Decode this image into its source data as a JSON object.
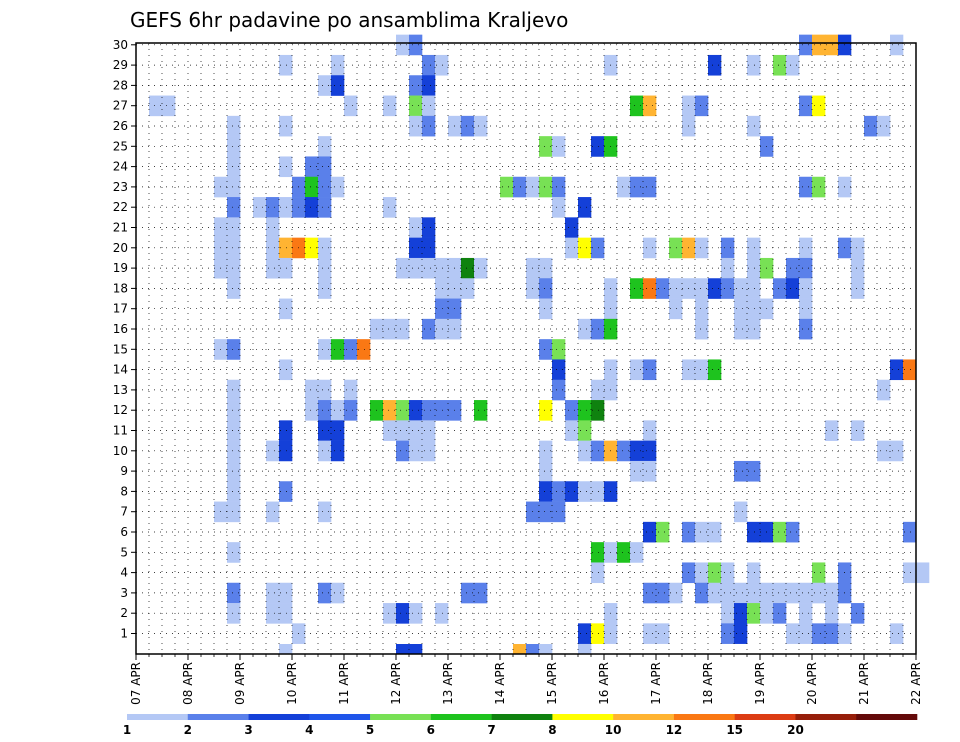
{
  "chart_data": {
    "type": "heatmap",
    "title": "GEFS 6hr padavine po ansamblima Kraljevo",
    "xlabel": "",
    "ylabel": "",
    "x_ticks": [
      "07 APR",
      "08 APR",
      "09 APR",
      "10 APR",
      "11 APR",
      "12 APR",
      "13 APR",
      "14 APR",
      "15 APR",
      "16 APR",
      "17 APR",
      "18 APR",
      "19 APR",
      "20 APR",
      "21 APR",
      "22 APR"
    ],
    "y_ticks": [
      "1",
      "2",
      "3",
      "4",
      "5",
      "6",
      "7",
      "8",
      "9",
      "10",
      "11",
      "12",
      "13",
      "14",
      "15",
      "16",
      "17",
      "18",
      "19",
      "20",
      "21",
      "22",
      "23",
      "24",
      "25",
      "26",
      "27",
      "28",
      "29",
      "30"
    ],
    "xlim": [
      "07 APR 00Z",
      "22 APR 00Z"
    ],
    "x_step": "6hr",
    "ylim": [
      1,
      30
    ],
    "grid": true,
    "colorbar": {
      "levels": [
        "1",
        "2",
        "3",
        "4",
        "5",
        "6",
        "7",
        "8",
        "10",
        "12",
        "15",
        "20"
      ],
      "colors": [
        "#b4c8f5",
        "#5a80ea",
        "#1440d8",
        "#1f55ea",
        "#78e155",
        "#1ec31e",
        "#0f820f",
        "#ffff00",
        "#ffb432",
        "#fa7814",
        "#dc3c14",
        "#961e0a",
        "#640a0a"
      ]
    },
    "cells": [
      [
        20,
        30,
        1
      ],
      [
        21,
        30,
        2
      ],
      [
        51,
        30,
        2
      ],
      [
        52,
        30,
        9
      ],
      [
        53,
        30,
        9
      ],
      [
        54,
        30,
        3
      ],
      [
        58,
        30,
        1
      ],
      [
        11,
        29,
        1
      ],
      [
        15,
        29,
        1
      ],
      [
        22,
        29,
        2
      ],
      [
        23,
        29,
        1
      ],
      [
        36,
        29,
        1
      ],
      [
        44,
        29,
        3
      ],
      [
        47,
        29,
        1
      ],
      [
        49,
        29,
        5
      ],
      [
        50,
        29,
        1
      ],
      [
        14,
        28,
        1
      ],
      [
        15,
        28,
        3
      ],
      [
        21,
        28,
        2
      ],
      [
        22,
        28,
        3
      ],
      [
        1,
        27,
        1
      ],
      [
        2,
        27,
        1
      ],
      [
        16,
        27,
        1
      ],
      [
        19,
        27,
        1
      ],
      [
        21,
        27,
        5
      ],
      [
        22,
        27,
        1
      ],
      [
        38,
        27,
        6
      ],
      [
        39,
        27,
        9
      ],
      [
        42,
        27,
        1
      ],
      [
        43,
        27,
        2
      ],
      [
        51,
        27,
        2
      ],
      [
        52,
        27,
        8
      ],
      [
        7,
        26,
        1
      ],
      [
        11,
        26,
        1
      ],
      [
        21,
        26,
        1
      ],
      [
        22,
        26,
        2
      ],
      [
        24,
        26,
        1
      ],
      [
        25,
        26,
        2
      ],
      [
        26,
        26,
        1
      ],
      [
        42,
        26,
        1
      ],
      [
        47,
        26,
        1
      ],
      [
        56,
        26,
        2
      ],
      [
        57,
        26,
        1
      ],
      [
        7,
        25,
        1
      ],
      [
        14,
        25,
        1
      ],
      [
        31,
        25,
        5
      ],
      [
        32,
        25,
        1
      ],
      [
        35,
        25,
        3
      ],
      [
        36,
        25,
        6
      ],
      [
        48,
        25,
        2
      ],
      [
        7,
        24,
        1
      ],
      [
        11,
        24,
        1
      ],
      [
        13,
        24,
        2
      ],
      [
        14,
        24,
        2
      ],
      [
        6,
        23,
        1
      ],
      [
        7,
        23,
        1
      ],
      [
        12,
        23,
        2
      ],
      [
        13,
        23,
        6
      ],
      [
        14,
        23,
        2
      ],
      [
        15,
        23,
        1
      ],
      [
        28,
        23,
        5
      ],
      [
        29,
        23,
        2
      ],
      [
        30,
        23,
        1
      ],
      [
        31,
        23,
        5
      ],
      [
        32,
        23,
        2
      ],
      [
        37,
        23,
        1
      ],
      [
        38,
        23,
        2
      ],
      [
        39,
        23,
        2
      ],
      [
        51,
        23,
        2
      ],
      [
        52,
        23,
        5
      ],
      [
        54,
        23,
        1
      ],
      [
        7,
        22,
        2
      ],
      [
        9,
        22,
        1
      ],
      [
        10,
        22,
        2
      ],
      [
        11,
        22,
        1
      ],
      [
        12,
        22,
        2
      ],
      [
        13,
        22,
        3
      ],
      [
        14,
        22,
        2
      ],
      [
        19,
        22,
        1
      ],
      [
        32,
        22,
        1
      ],
      [
        34,
        22,
        3
      ],
      [
        6,
        21,
        1
      ],
      [
        7,
        21,
        1
      ],
      [
        10,
        21,
        1
      ],
      [
        21,
        21,
        1
      ],
      [
        22,
        21,
        3
      ],
      [
        33,
        21,
        3
      ],
      [
        6,
        20,
        1
      ],
      [
        7,
        20,
        1
      ],
      [
        10,
        20,
        1
      ],
      [
        11,
        20,
        9
      ],
      [
        12,
        20,
        10
      ],
      [
        13,
        20,
        8
      ],
      [
        14,
        20,
        1
      ],
      [
        21,
        20,
        3
      ],
      [
        22,
        20,
        3
      ],
      [
        33,
        20,
        1
      ],
      [
        34,
        20,
        8
      ],
      [
        35,
        20,
        2
      ],
      [
        39,
        20,
        1
      ],
      [
        41,
        20,
        5
      ],
      [
        42,
        20,
        9
      ],
      [
        43,
        20,
        1
      ],
      [
        45,
        20,
        2
      ],
      [
        47,
        20,
        1
      ],
      [
        51,
        20,
        1
      ],
      [
        54,
        20,
        2
      ],
      [
        55,
        20,
        1
      ],
      [
        6,
        19,
        1
      ],
      [
        7,
        19,
        1
      ],
      [
        10,
        19,
        1
      ],
      [
        11,
        19,
        1
      ],
      [
        14,
        19,
        1
      ],
      [
        20,
        19,
        1
      ],
      [
        21,
        19,
        1
      ],
      [
        22,
        19,
        1
      ],
      [
        23,
        19,
        1
      ],
      [
        24,
        19,
        1
      ],
      [
        25,
        19,
        7
      ],
      [
        26,
        19,
        1
      ],
      [
        30,
        19,
        1
      ],
      [
        31,
        19,
        1
      ],
      [
        45,
        19,
        1
      ],
      [
        47,
        19,
        1
      ],
      [
        48,
        19,
        5
      ],
      [
        50,
        19,
        2
      ],
      [
        51,
        19,
        2
      ],
      [
        55,
        19,
        1
      ],
      [
        7,
        18,
        1
      ],
      [
        14,
        18,
        1
      ],
      [
        23,
        18,
        1
      ],
      [
        24,
        18,
        1
      ],
      [
        25,
        18,
        1
      ],
      [
        30,
        18,
        1
      ],
      [
        31,
        18,
        2
      ],
      [
        36,
        18,
        1
      ],
      [
        38,
        18,
        6
      ],
      [
        39,
        18,
        10
      ],
      [
        40,
        18,
        2
      ],
      [
        41,
        18,
        1
      ],
      [
        42,
        18,
        1
      ],
      [
        43,
        18,
        1
      ],
      [
        44,
        18,
        3
      ],
      [
        45,
        18,
        2
      ],
      [
        46,
        18,
        1
      ],
      [
        47,
        18,
        1
      ],
      [
        49,
        18,
        2
      ],
      [
        50,
        18,
        3
      ],
      [
        51,
        18,
        1
      ],
      [
        55,
        18,
        1
      ],
      [
        11,
        17,
        1
      ],
      [
        23,
        17,
        2
      ],
      [
        24,
        17,
        2
      ],
      [
        31,
        17,
        1
      ],
      [
        36,
        17,
        1
      ],
      [
        41,
        17,
        1
      ],
      [
        43,
        17,
        1
      ],
      [
        46,
        17,
        1
      ],
      [
        47,
        17,
        1
      ],
      [
        48,
        17,
        1
      ],
      [
        51,
        17,
        1
      ],
      [
        18,
        16,
        1
      ],
      [
        19,
        16,
        1
      ],
      [
        20,
        16,
        1
      ],
      [
        22,
        16,
        2
      ],
      [
        23,
        16,
        1
      ],
      [
        24,
        16,
        1
      ],
      [
        34,
        16,
        1
      ],
      [
        35,
        16,
        2
      ],
      [
        36,
        16,
        6
      ],
      [
        43,
        16,
        1
      ],
      [
        46,
        16,
        1
      ],
      [
        47,
        16,
        1
      ],
      [
        51,
        16,
        2
      ],
      [
        6,
        15,
        1
      ],
      [
        7,
        15,
        2
      ],
      [
        14,
        15,
        1
      ],
      [
        15,
        15,
        6
      ],
      [
        16,
        15,
        2
      ],
      [
        17,
        15,
        10
      ],
      [
        31,
        15,
        2
      ],
      [
        32,
        15,
        5
      ],
      [
        11,
        14,
        1
      ],
      [
        32,
        14,
        3
      ],
      [
        36,
        14,
        1
      ],
      [
        38,
        14,
        1
      ],
      [
        39,
        14,
        2
      ],
      [
        42,
        14,
        1
      ],
      [
        43,
        14,
        1
      ],
      [
        44,
        14,
        6
      ],
      [
        58,
        14,
        3
      ],
      [
        59,
        14,
        10
      ],
      [
        7,
        13,
        1
      ],
      [
        13,
        13,
        1
      ],
      [
        14,
        13,
        1
      ],
      [
        16,
        13,
        1
      ],
      [
        32,
        13,
        2
      ],
      [
        35,
        13,
        1
      ],
      [
        36,
        13,
        1
      ],
      [
        57,
        13,
        1
      ],
      [
        7,
        12,
        1
      ],
      [
        13,
        12,
        1
      ],
      [
        14,
        12,
        2
      ],
      [
        15,
        12,
        1
      ],
      [
        16,
        12,
        2
      ],
      [
        18,
        12,
        6
      ],
      [
        19,
        12,
        9
      ],
      [
        20,
        12,
        5
      ],
      [
        21,
        12,
        3
      ],
      [
        22,
        12,
        2
      ],
      [
        23,
        12,
        2
      ],
      [
        24,
        12,
        2
      ],
      [
        26,
        12,
        6
      ],
      [
        31,
        12,
        8
      ],
      [
        33,
        12,
        2
      ],
      [
        34,
        12,
        6
      ],
      [
        35,
        12,
        7
      ],
      [
        7,
        11,
        1
      ],
      [
        11,
        11,
        3
      ],
      [
        14,
        11,
        3
      ],
      [
        15,
        11,
        3
      ],
      [
        19,
        11,
        1
      ],
      [
        20,
        11,
        1
      ],
      [
        21,
        11,
        1
      ],
      [
        22,
        11,
        1
      ],
      [
        33,
        11,
        1
      ],
      [
        34,
        11,
        5
      ],
      [
        39,
        11,
        1
      ],
      [
        53,
        11,
        1
      ],
      [
        55,
        11,
        1
      ],
      [
        7,
        10,
        1
      ],
      [
        10,
        10,
        1
      ],
      [
        11,
        10,
        3
      ],
      [
        14,
        10,
        1
      ],
      [
        15,
        10,
        3
      ],
      [
        20,
        10,
        2
      ],
      [
        21,
        10,
        1
      ],
      [
        22,
        10,
        1
      ],
      [
        31,
        10,
        1
      ],
      [
        34,
        10,
        1
      ],
      [
        35,
        10,
        2
      ],
      [
        36,
        10,
        9
      ],
      [
        37,
        10,
        2
      ],
      [
        38,
        10,
        3
      ],
      [
        39,
        10,
        3
      ],
      [
        57,
        10,
        1
      ],
      [
        58,
        10,
        1
      ],
      [
        7,
        9,
        1
      ],
      [
        31,
        9,
        1
      ],
      [
        38,
        9,
        1
      ],
      [
        39,
        9,
        1
      ],
      [
        46,
        9,
        2
      ],
      [
        47,
        9,
        2
      ],
      [
        7,
        8,
        1
      ],
      [
        11,
        8,
        2
      ],
      [
        31,
        8,
        3
      ],
      [
        32,
        8,
        2
      ],
      [
        33,
        8,
        3
      ],
      [
        34,
        8,
        1
      ],
      [
        35,
        8,
        1
      ],
      [
        36,
        8,
        3
      ],
      [
        6,
        7,
        1
      ],
      [
        7,
        7,
        1
      ],
      [
        10,
        7,
        1
      ],
      [
        14,
        7,
        1
      ],
      [
        30,
        7,
        2
      ],
      [
        31,
        7,
        2
      ],
      [
        32,
        7,
        2
      ],
      [
        46,
        7,
        1
      ],
      [
        39,
        6,
        3
      ],
      [
        40,
        6,
        5
      ],
      [
        42,
        6,
        2
      ],
      [
        43,
        6,
        1
      ],
      [
        44,
        6,
        1
      ],
      [
        47,
        6,
        3
      ],
      [
        48,
        6,
        3
      ],
      [
        49,
        6,
        5
      ],
      [
        50,
        6,
        2
      ],
      [
        59,
        6,
        2
      ],
      [
        7,
        5,
        1
      ],
      [
        35,
        5,
        6
      ],
      [
        36,
        5,
        1
      ],
      [
        37,
        5,
        6
      ],
      [
        38,
        5,
        1
      ],
      [
        35,
        4,
        1
      ],
      [
        42,
        4,
        2
      ],
      [
        43,
        4,
        1
      ],
      [
        44,
        4,
        5
      ],
      [
        45,
        4,
        1
      ],
      [
        47,
        4,
        1
      ],
      [
        52,
        4,
        5
      ],
      [
        54,
        4,
        2
      ],
      [
        59,
        4,
        1
      ],
      [
        60,
        4,
        1
      ],
      [
        7,
        3,
        2
      ],
      [
        10,
        3,
        1
      ],
      [
        11,
        3,
        1
      ],
      [
        25,
        3,
        2
      ],
      [
        26,
        3,
        2
      ],
      [
        41,
        3,
        1
      ],
      [
        14,
        3,
        2
      ],
      [
        15,
        3,
        1
      ],
      [
        39,
        3,
        2
      ],
      [
        40,
        3,
        2
      ],
      [
        43,
        3,
        2
      ],
      [
        44,
        3,
        1
      ],
      [
        45,
        3,
        1
      ],
      [
        46,
        3,
        1
      ],
      [
        47,
        3,
        1
      ],
      [
        48,
        3,
        1
      ],
      [
        49,
        3,
        1
      ],
      [
        50,
        3,
        1
      ],
      [
        51,
        3,
        1
      ],
      [
        52,
        3,
        1
      ],
      [
        53,
        3,
        1
      ],
      [
        54,
        3,
        2
      ],
      [
        7,
        2,
        1
      ],
      [
        10,
        2,
        1
      ],
      [
        11,
        2,
        1
      ],
      [
        19,
        2,
        1
      ],
      [
        20,
        2,
        3
      ],
      [
        21,
        2,
        1
      ],
      [
        23,
        2,
        1
      ],
      [
        36,
        2,
        1
      ],
      [
        45,
        2,
        1
      ],
      [
        46,
        2,
        3
      ],
      [
        47,
        2,
        5
      ],
      [
        48,
        2,
        1
      ],
      [
        49,
        2,
        2
      ],
      [
        51,
        2,
        1
      ],
      [
        53,
        2,
        1
      ],
      [
        55,
        2,
        2
      ],
      [
        12,
        1,
        1
      ],
      [
        34,
        1,
        3
      ],
      [
        35,
        1,
        8
      ],
      [
        36,
        1,
        1
      ],
      [
        39,
        1,
        1
      ],
      [
        40,
        1,
        1
      ],
      [
        45,
        1,
        2
      ],
      [
        46,
        1,
        3
      ],
      [
        50,
        1,
        1
      ],
      [
        51,
        1,
        1
      ],
      [
        52,
        1,
        2
      ],
      [
        53,
        1,
        2
      ],
      [
        54,
        1,
        1
      ],
      [
        58,
        1,
        1
      ]
    ],
    "bottom_cells": [
      [
        11,
        1
      ],
      [
        20,
        3
      ],
      [
        21,
        3
      ],
      [
        29,
        9
      ],
      [
        30,
        2
      ],
      [
        31,
        1
      ],
      [
        34,
        1
      ]
    ]
  }
}
